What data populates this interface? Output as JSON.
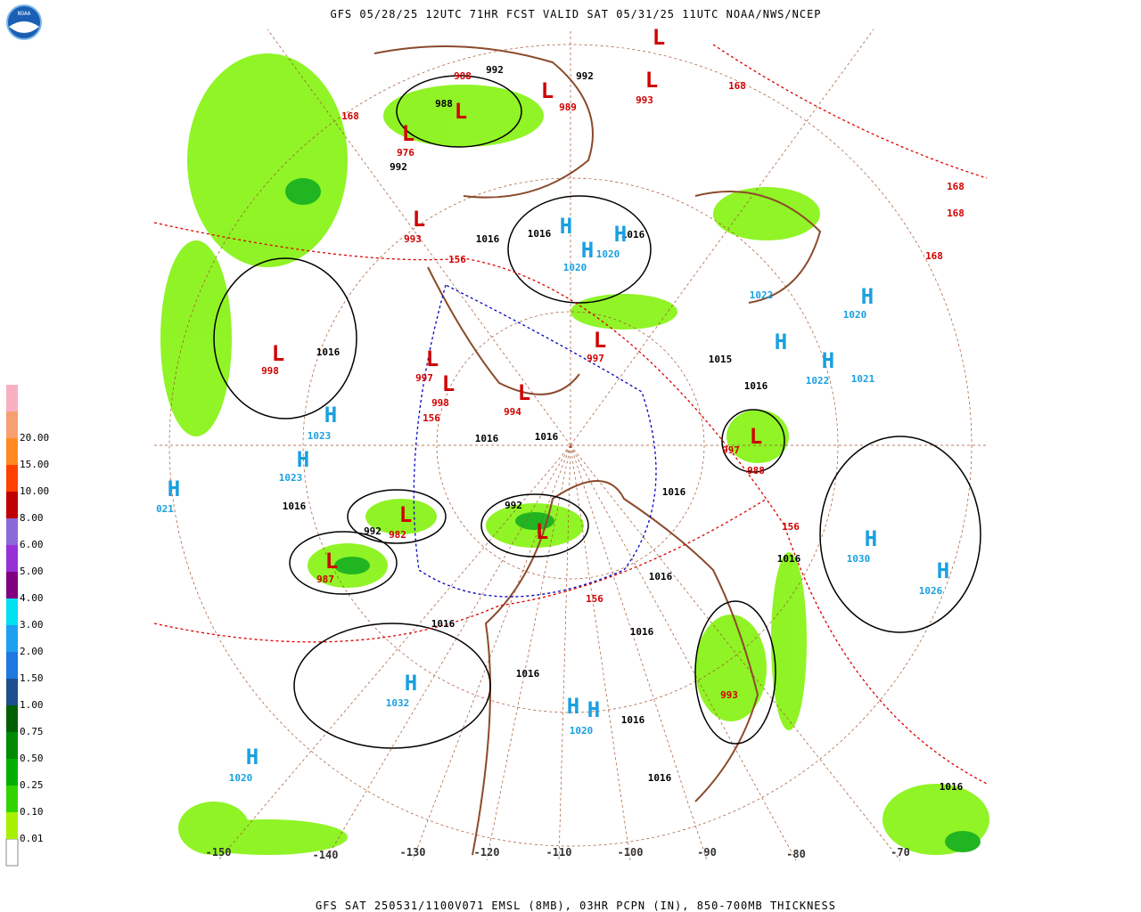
{
  "header": {
    "title": "GFS 05/28/25 12UTC 71HR FCST VALID SAT 05/31/25 11UTC NOAA/NWS/NCEP",
    "logo": "NOAA"
  },
  "footer": {
    "caption": "GFS SAT 250531/1100V071 EMSL (8MB), 03HR PCPN (IN), 850-700MB THICKNESS"
  },
  "legend": {
    "labels": [
      "0.01",
      "0.10",
      "0.25",
      "0.50",
      "0.75",
      "1.00",
      "1.50",
      "2.00",
      "3.00",
      "4.00",
      "5.00",
      "6.00",
      "8.00",
      "10.00",
      "15.00",
      "20.00"
    ]
  },
  "map": {
    "longitudes": [
      "-150",
      "-140",
      "-130",
      "-120",
      "-110",
      "-100",
      "-90",
      "-80",
      "-70"
    ],
    "isobar_labels": [
      "992",
      "992",
      "988",
      "992",
      "1016",
      "1016",
      "1016",
      "1016",
      "1016",
      "1016",
      "1016",
      "1016",
      "992",
      "992",
      "1016",
      "1016",
      "1016",
      "1016",
      "1016",
      "1016",
      "1016",
      "1016",
      "1015",
      "1016"
    ],
    "thickness_labels": [
      "988",
      "989",
      "993",
      "168",
      "168",
      "976",
      "993",
      "156",
      "998",
      "997",
      "998",
      "156",
      "994",
      "997",
      "997",
      "988",
      "156",
      "982",
      "987",
      "156",
      "168",
      "168",
      "168",
      "993"
    ],
    "high_pressures": [
      "1020",
      "1020",
      "1023",
      "1023",
      "021",
      "1020",
      "1022",
      "1021",
      "1030",
      "1026",
      "1032",
      "1020",
      "1020",
      "1022"
    ],
    "high_symbols": [
      "H",
      "H",
      "H",
      "H",
      "H",
      "H",
      "H",
      "H",
      "H",
      "H",
      "H",
      "H",
      "H",
      "H",
      "H"
    ],
    "low_symbols": [
      "L",
      "L",
      "L",
      "L",
      "L",
      "L",
      "L",
      "L",
      "L",
      "L",
      "L",
      "L",
      "L",
      "L",
      "L"
    ]
  }
}
